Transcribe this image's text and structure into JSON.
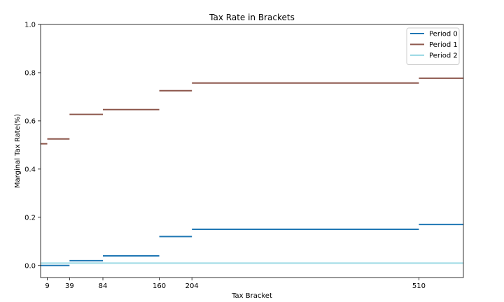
{
  "chart_data": {
    "type": "line",
    "title": "Tax Rate in Brackets",
    "xlabel": "Tax Bracket",
    "ylabel": "Marginal Tax Rate(%)",
    "xlim": [
      0,
      570
    ],
    "ylim": [
      -0.05,
      1.0
    ],
    "x_ticks": [
      9,
      39,
      84,
      160,
      204,
      510
    ],
    "y_ticks": [
      0.0,
      0.2,
      0.4,
      0.6,
      0.8,
      1.0
    ],
    "y_tick_labels": [
      "0.0",
      "0.2",
      "0.4",
      "0.6",
      "0.8",
      "1.0"
    ],
    "grid": false,
    "legend_position": "top-right",
    "series": [
      {
        "name": "Period 0",
        "color": "#1f77b4",
        "steps": [
          {
            "x0": 0,
            "x1": 39,
            "y": 0.0
          },
          {
            "x0": 39,
            "x1": 84,
            "y": 0.02
          },
          {
            "x0": 84,
            "x1": 160,
            "y": 0.04
          },
          {
            "x0": 160,
            "x1": 204,
            "y": 0.12
          },
          {
            "x0": 204,
            "x1": 510,
            "y": 0.15
          },
          {
            "x0": 510,
            "x1": 570,
            "y": 0.17
          }
        ]
      },
      {
        "name": "Period 1",
        "color": "#8c564b",
        "steps": [
          {
            "x0": 0,
            "x1": 9,
            "y": 0.505
          },
          {
            "x0": 9,
            "x1": 39,
            "y": 0.525
          },
          {
            "x0": 39,
            "x1": 84,
            "y": 0.627
          },
          {
            "x0": 84,
            "x1": 160,
            "y": 0.647
          },
          {
            "x0": 160,
            "x1": 204,
            "y": 0.725
          },
          {
            "x0": 204,
            "x1": 510,
            "y": 0.757
          },
          {
            "x0": 510,
            "x1": 570,
            "y": 0.777
          }
        ]
      },
      {
        "name": "Period 2",
        "color": "#9edae5",
        "steps": [
          {
            "x0": 0,
            "x1": 570,
            "y": 0.01
          }
        ]
      }
    ]
  }
}
